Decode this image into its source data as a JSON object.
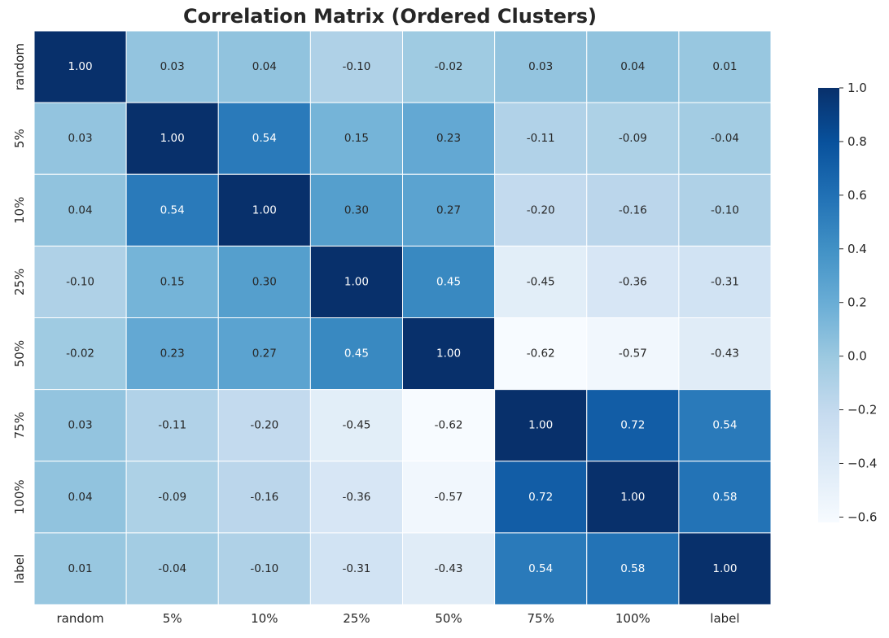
{
  "chart_data": {
    "type": "heatmap",
    "title": "Correlation Matrix (Ordered Clusters)",
    "xlabel": "",
    "ylabel": "",
    "x_categories": [
      "random",
      "5%",
      "10%",
      "25%",
      "50%",
      "75%",
      "100%",
      "label"
    ],
    "y_categories": [
      "random",
      "5%",
      "10%",
      "25%",
      "50%",
      "75%",
      "100%",
      "label"
    ],
    "values": [
      [
        1.0,
        0.03,
        0.04,
        -0.1,
        -0.02,
        0.03,
        0.04,
        0.01
      ],
      [
        0.03,
        1.0,
        0.54,
        0.15,
        0.23,
        -0.11,
        -0.09,
        -0.04
      ],
      [
        0.04,
        0.54,
        1.0,
        0.3,
        0.27,
        -0.2,
        -0.16,
        -0.1
      ],
      [
        -0.1,
        0.15,
        0.3,
        1.0,
        0.45,
        -0.45,
        -0.36,
        -0.31
      ],
      [
        -0.02,
        0.23,
        0.27,
        0.45,
        1.0,
        -0.62,
        -0.57,
        -0.43
      ],
      [
        0.03,
        -0.11,
        -0.2,
        -0.45,
        -0.62,
        1.0,
        0.72,
        0.54
      ],
      [
        0.04,
        -0.09,
        -0.16,
        -0.36,
        -0.57,
        0.72,
        1.0,
        0.58
      ],
      [
        0.01,
        -0.04,
        -0.1,
        -0.31,
        -0.43,
        0.54,
        0.58,
        1.0
      ]
    ],
    "value_labels": [
      [
        "1.00",
        "0.03",
        "0.04",
        "-0.10",
        "-0.02",
        "0.03",
        "0.04",
        "0.01"
      ],
      [
        "0.03",
        "1.00",
        "0.54",
        "0.15",
        "0.23",
        "-0.11",
        "-0.09",
        "-0.04"
      ],
      [
        "0.04",
        "0.54",
        "1.00",
        "0.30",
        "0.27",
        "-0.20",
        "-0.16",
        "-0.10"
      ],
      [
        "-0.10",
        "0.15",
        "0.30",
        "1.00",
        "0.45",
        "-0.45",
        "-0.36",
        "-0.31"
      ],
      [
        "-0.02",
        "0.23",
        "0.27",
        "0.45",
        "1.00",
        "-0.62",
        "-0.57",
        "-0.43"
      ],
      [
        "0.03",
        "-0.11",
        "-0.20",
        "-0.45",
        "-0.62",
        "1.00",
        "0.72",
        "0.54"
      ],
      [
        "0.04",
        "-0.09",
        "-0.16",
        "-0.36",
        "-0.57",
        "0.72",
        "1.00",
        "0.58"
      ],
      [
        "0.01",
        "-0.04",
        "-0.10",
        "-0.31",
        "-0.43",
        "0.54",
        "0.58",
        "1.00"
      ]
    ],
    "colormap": "Blues",
    "color_range": [
      -0.62,
      1.0
    ],
    "colorbar": {
      "ticks": [
        1.0,
        0.8,
        0.6,
        0.4,
        0.2,
        0.0,
        -0.2,
        -0.4,
        -0.6
      ],
      "tick_labels": [
        "1.0",
        "0.8",
        "0.6",
        "0.4",
        "0.2",
        "0.0",
        "−0.2",
        "−0.4",
        "−0.6"
      ],
      "placement": "right"
    },
    "grid": false
  }
}
